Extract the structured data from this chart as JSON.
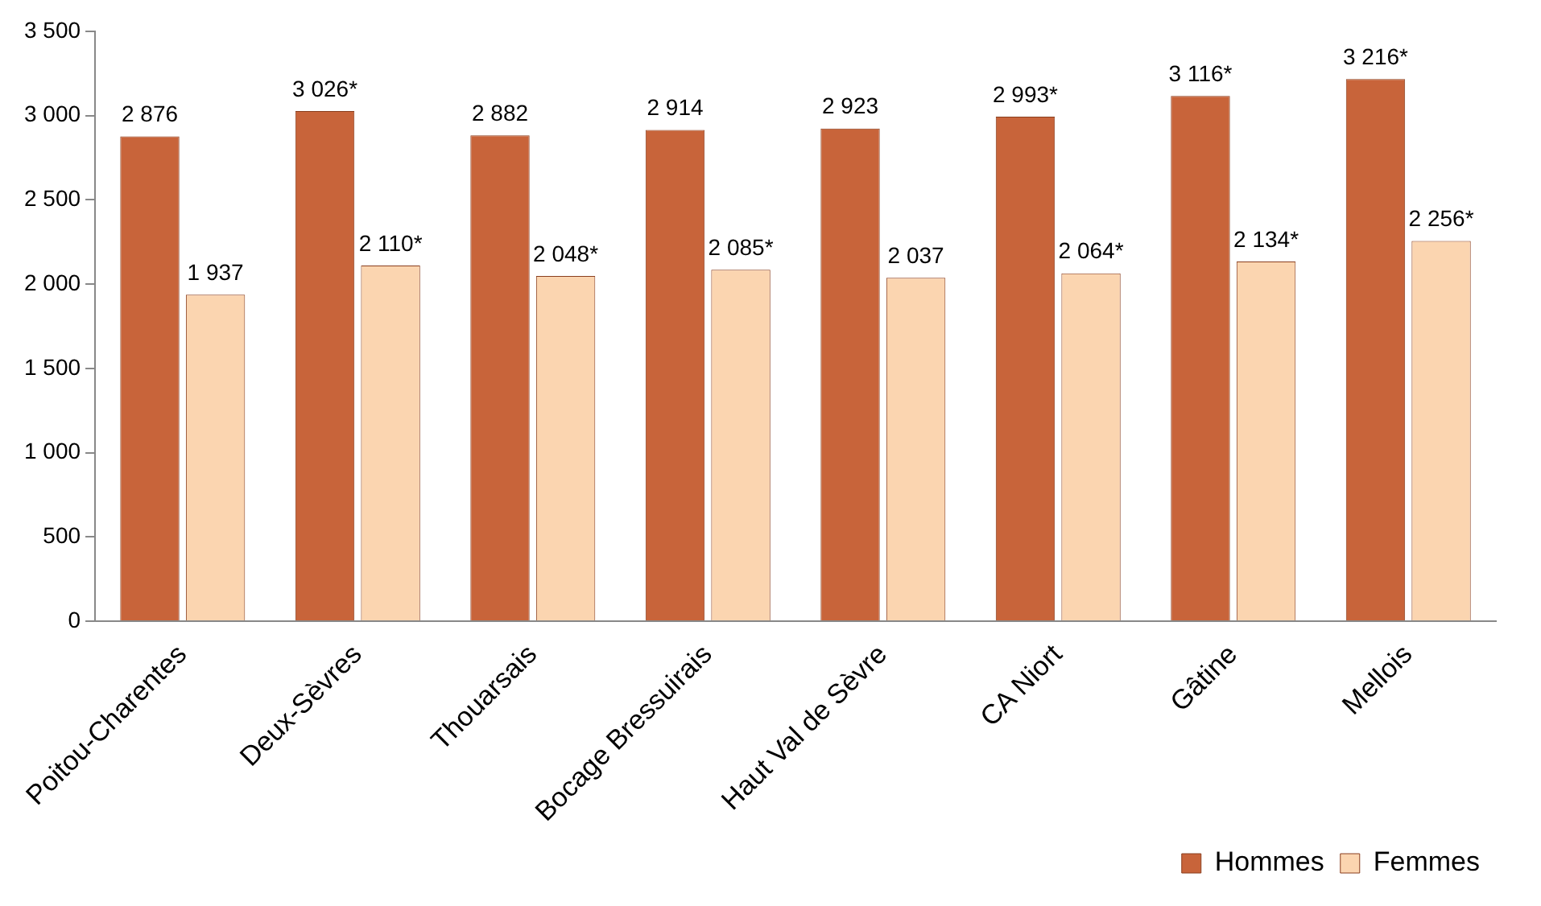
{
  "chart_data": {
    "type": "bar",
    "categories": [
      "Poitou-Charentes",
      "Deux-Sèvres",
      "Thouarsais",
      "Bocage Bressuirais",
      "Haut Val de Sèvre",
      "CA Niort",
      "Gâtine",
      "Mellois"
    ],
    "series": [
      {
        "name": "Hommes",
        "color": "#c8643a",
        "values": [
          2876,
          3026,
          2882,
          2914,
          2923,
          2993,
          3116,
          3216
        ],
        "value_labels": [
          "2 876",
          "3 026*",
          "2 882",
          "2 914",
          "2 923",
          "2 993*",
          "3 116*",
          "3 216*"
        ]
      },
      {
        "name": "Femmes",
        "color": "#fbd5b0",
        "values": [
          1937,
          2110,
          2048,
          2085,
          2037,
          2064,
          2134,
          2256
        ],
        "value_labels": [
          "1 937",
          "2 110*",
          "2 048*",
          "2 085*",
          "2 037",
          "2 064*",
          "2 134*",
          "2 256*"
        ]
      }
    ],
    "ylim": [
      0,
      3500
    ],
    "yticks": [
      0,
      {
        "value": 500,
        "label": "500"
      },
      {
        "value": 1000,
        "label": "1 000"
      },
      {
        "value": 1500,
        "label": "1 500"
      },
      {
        "value": 2000,
        "label": "2 000"
      },
      {
        "value": 2500,
        "label": "2 500"
      },
      {
        "value": 3000,
        "label": "3 000"
      },
      {
        "value": 3500,
        "label": "3 500"
      }
    ],
    "grid": false,
    "legend": "bottom right"
  }
}
